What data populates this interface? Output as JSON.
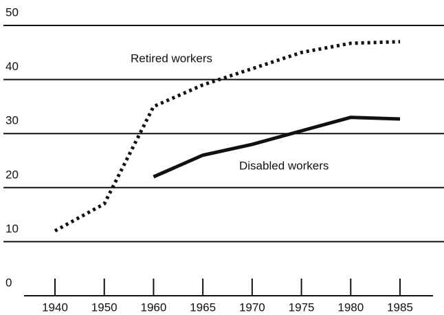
{
  "chart_data": {
    "type": "line",
    "categories": [
      "1940",
      "1950",
      "1960",
      "1965",
      "1970",
      "1975",
      "1980",
      "1985"
    ],
    "series": [
      {
        "name": "Retired workers",
        "color": "#111111",
        "style": "dotted",
        "values": [
          12,
          17,
          35,
          39,
          42,
          45,
          46.7,
          47
        ]
      },
      {
        "name": "Disabled workers",
        "color": "#111111",
        "style": "solid",
        "values": [
          null,
          null,
          22,
          26,
          28,
          30.5,
          33,
          32.7
        ]
      }
    ],
    "ylim": [
      0,
      50
    ],
    "yticks": [
      0,
      10,
      20,
      30,
      40,
      50
    ],
    "grid": true
  }
}
